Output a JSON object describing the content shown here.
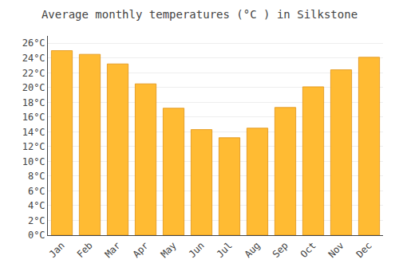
{
  "chart_data": {
    "type": "bar",
    "title": "Average monthly temperatures (°C ) in Silkstone",
    "categories": [
      "Jan",
      "Feb",
      "Mar",
      "Apr",
      "May",
      "Jun",
      "Jul",
      "Aug",
      "Sep",
      "Oct",
      "Nov",
      "Dec"
    ],
    "values": [
      25.0,
      24.5,
      23.2,
      20.5,
      17.2,
      14.3,
      13.2,
      14.5,
      17.3,
      20.1,
      22.4,
      24.1
    ],
    "color": "#FFBB33",
    "ylim": [
      0,
      27
    ],
    "yticks": [
      {
        "value": 0,
        "label": "0°C"
      },
      {
        "value": 2,
        "label": "2°C"
      },
      {
        "value": 4,
        "label": "4°C"
      },
      {
        "value": 6,
        "label": "6°C"
      },
      {
        "value": 8,
        "label": "8°C"
      },
      {
        "value": 10,
        "label": "10°C"
      },
      {
        "value": 12,
        "label": "12°C"
      },
      {
        "value": 14,
        "label": "14°C"
      },
      {
        "value": 16,
        "label": "16°C"
      },
      {
        "value": 18,
        "label": "18°C"
      },
      {
        "value": 20,
        "label": "20°C"
      },
      {
        "value": 22,
        "label": "22°C"
      },
      {
        "value": 24,
        "label": "24°C"
      },
      {
        "value": 26,
        "label": "26°C"
      }
    ],
    "grid": true
  }
}
